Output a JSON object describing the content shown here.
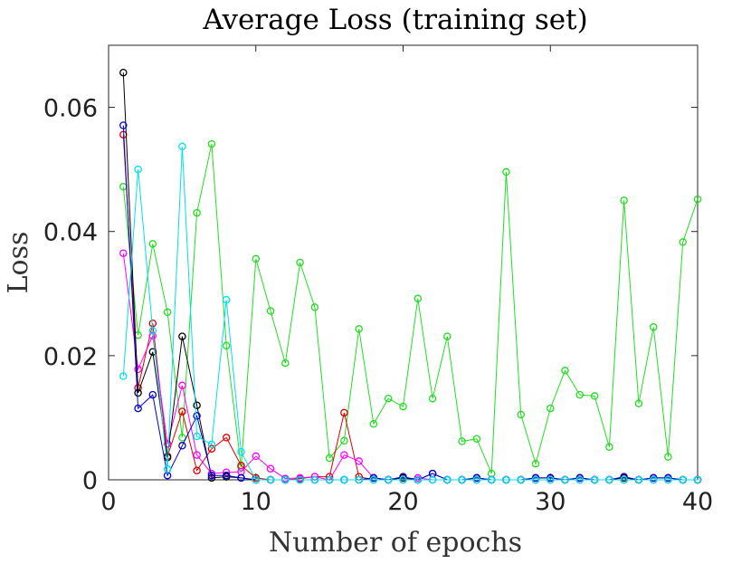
{
  "chart_data": {
    "type": "line",
    "title": "Average Loss (training set)",
    "xlabel": "Number of epochs",
    "ylabel": "Loss",
    "xlim": [
      0,
      40
    ],
    "ylim": [
      0,
      0.07
    ],
    "xticks": [
      0,
      10,
      20,
      30,
      40
    ],
    "yticks": [
      0,
      0.02,
      0.04,
      0.06
    ],
    "xtick_labels": [
      "0",
      "10",
      "20",
      "30",
      "40"
    ],
    "ytick_labels": [
      "0",
      "0.02",
      "0.04",
      "0.06"
    ],
    "grid": false,
    "marker": "circle",
    "series": [
      {
        "color": "#22dd22",
        "x": [
          1,
          2,
          3,
          4,
          5,
          6,
          7,
          8,
          9,
          10,
          11,
          12,
          13,
          14,
          15,
          16,
          17,
          18,
          19,
          20,
          21,
          22,
          23,
          24,
          25,
          26,
          27,
          28,
          29,
          30,
          31,
          32,
          33,
          34,
          35,
          36,
          37,
          38,
          39,
          40
        ],
        "values": [
          0.0472,
          0.0233,
          0.038,
          0.027,
          0.0068,
          0.043,
          0.0541,
          0.0216,
          0.002,
          0.0356,
          0.0272,
          0.0188,
          0.035,
          0.0278,
          0.0035,
          0.0063,
          0.0243,
          0.009,
          0.0131,
          0.0118,
          0.0292,
          0.0131,
          0.0231,
          0.0062,
          0.0066,
          0.001,
          0.0496,
          0.0105,
          0.0026,
          0.0115,
          0.0176,
          0.0137,
          0.0135,
          0.0053,
          0.045,
          0.0123,
          0.0246,
          0.0037,
          0.0383,
          0.0452
        ]
      },
      {
        "color": "#dd0000",
        "x": [
          1,
          2,
          3,
          4,
          5,
          6,
          7,
          8,
          9,
          10,
          11,
          12,
          13,
          14,
          15,
          16,
          17,
          18,
          19,
          20,
          21,
          22,
          23,
          24,
          25,
          26,
          27,
          28,
          29,
          30,
          31,
          32,
          33,
          34,
          35,
          36,
          37,
          38,
          39,
          40
        ],
        "values": [
          0.0556,
          0.0148,
          0.0252,
          0.0038,
          0.011,
          0.0015,
          0.005,
          0.0068,
          0.0023,
          0.0003,
          0,
          0,
          0.0002,
          0.0005,
          0.0005,
          0.0108,
          0.0005,
          0,
          0,
          0,
          0,
          0,
          0,
          0,
          0,
          0,
          0,
          0,
          0,
          0,
          0,
          0,
          0,
          0,
          0,
          0,
          0,
          0,
          0,
          0
        ]
      },
      {
        "color": "#ff00ff",
        "x": [
          1,
          2,
          3,
          4,
          5,
          6,
          7,
          8,
          9,
          10,
          11,
          12,
          13,
          14,
          15,
          16,
          17,
          18,
          19,
          20,
          21,
          22,
          23,
          24,
          25,
          26,
          27,
          28,
          29,
          30,
          31,
          32,
          33,
          34,
          35,
          36,
          37,
          38,
          39,
          40
        ],
        "values": [
          0.0365,
          0.0178,
          0.0232,
          0.0058,
          0.0152,
          0.004,
          0.001,
          0.0012,
          0.0013,
          0.0038,
          0.0018,
          0.0002,
          0.0003,
          0.0005,
          0,
          0.004,
          0.003,
          0.0003,
          0,
          0,
          0.0003,
          0,
          0,
          0,
          0,
          0,
          0,
          0,
          0,
          0,
          0,
          0,
          0,
          0,
          0,
          0,
          0,
          0,
          0,
          0
        ]
      },
      {
        "color": "#000000",
        "x": [
          1,
          2,
          3,
          4,
          5,
          6,
          7,
          8,
          9,
          10,
          11,
          12,
          13,
          14,
          15,
          16,
          17,
          18,
          19,
          20,
          21,
          22,
          23,
          24,
          25,
          26,
          27,
          28,
          29,
          30,
          31,
          32,
          33,
          34,
          35,
          36,
          37,
          38,
          39,
          40
        ],
        "values": [
          0.0656,
          0.014,
          0.0206,
          0.0036,
          0.0231,
          0.012,
          0.0003,
          0.0005,
          0.0003,
          0,
          0,
          0,
          0,
          0,
          0,
          0,
          0,
          0.0003,
          0,
          0.0003,
          0,
          0.001,
          0,
          0,
          0.0003,
          0,
          0,
          0,
          0.0003,
          0.0003,
          0,
          0.0003,
          0,
          0,
          0.0003,
          0,
          0.0003,
          0.0003,
          0,
          0
        ]
      },
      {
        "color": "#0000cc",
        "x": [
          1,
          2,
          3,
          4,
          5,
          6,
          7,
          8,
          9,
          10,
          11,
          12,
          13,
          14,
          15,
          16,
          17,
          18,
          19,
          20,
          21,
          22,
          23,
          24,
          25,
          26,
          27,
          28,
          29,
          30,
          31,
          32,
          33,
          34,
          35,
          36,
          37,
          38,
          39,
          40
        ],
        "values": [
          0.0571,
          0.0115,
          0.0137,
          0.0007,
          0.0055,
          0.0103,
          0.0007,
          0.0007,
          0.0003,
          0,
          0,
          0,
          0,
          0,
          0,
          0,
          0,
          0.0003,
          0,
          0.0005,
          0,
          0.001,
          0,
          0,
          0.0003,
          0,
          0,
          0,
          0.0003,
          0.0003,
          0,
          0.0003,
          0,
          0,
          0.0005,
          0,
          0.0003,
          0.0003,
          0,
          0
        ]
      },
      {
        "color": "#00e0e8",
        "x": [
          1,
          2,
          3,
          4,
          5,
          6,
          7,
          8,
          9,
          10,
          11,
          12,
          13,
          14,
          15,
          16,
          17,
          18,
          19,
          20,
          21,
          22,
          23,
          24,
          25,
          26,
          27,
          28,
          29,
          30,
          31,
          32,
          33,
          34,
          35,
          36,
          37,
          38,
          39,
          40
        ],
        "values": [
          0.0167,
          0.05,
          0.024,
          0.0017,
          0.0537,
          0.007,
          0.0057,
          0.029,
          0.0045,
          0,
          0,
          0,
          0,
          0,
          0,
          0,
          0,
          0,
          0,
          0,
          0,
          0,
          0,
          0,
          0,
          0,
          0,
          0,
          0,
          0,
          0,
          0,
          0,
          0,
          0,
          0,
          0,
          0,
          0,
          0
        ]
      }
    ]
  }
}
